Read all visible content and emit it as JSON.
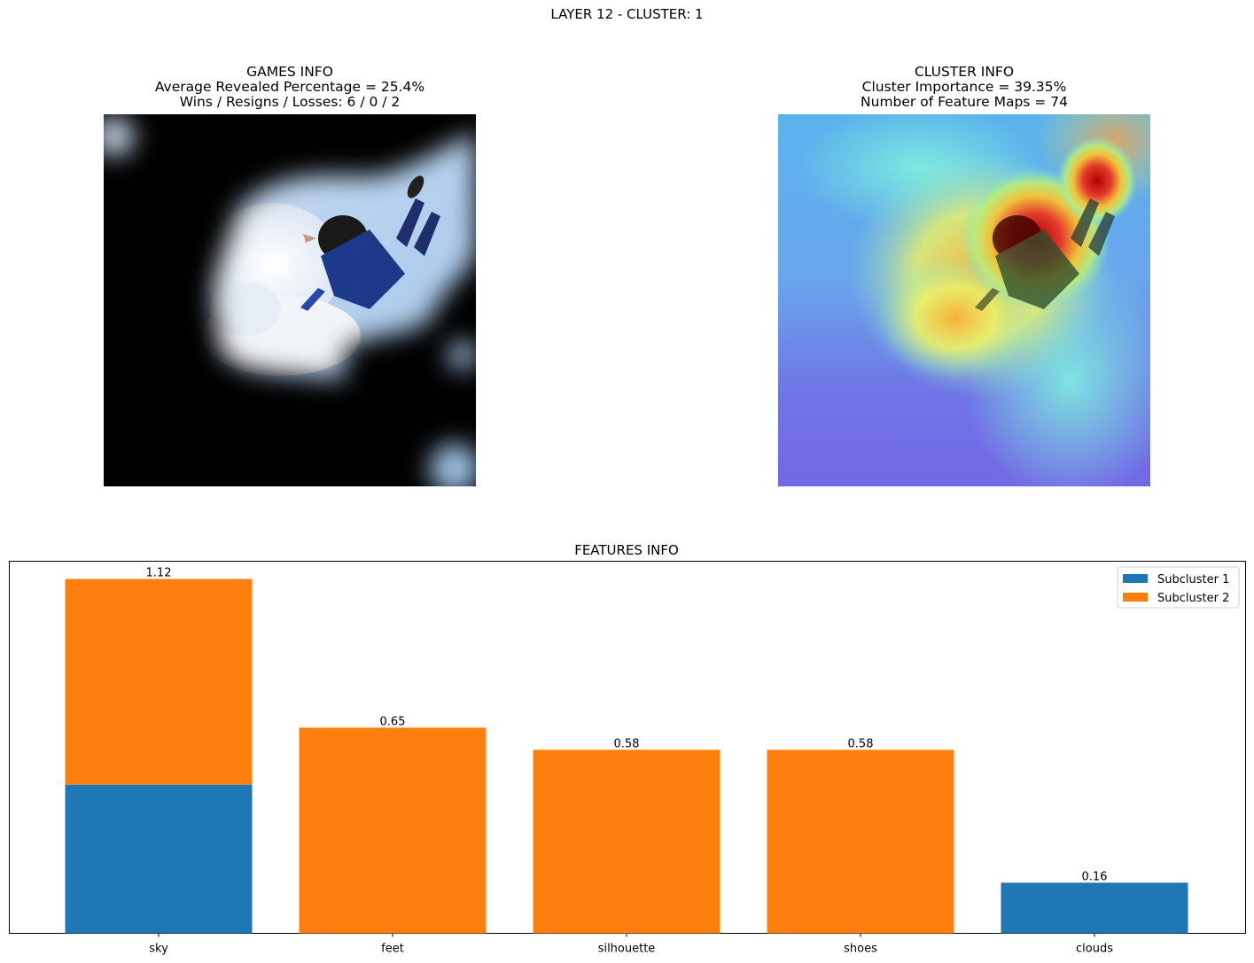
{
  "figure": {
    "suptitle": "LAYER 12 - CLUSTER: 1"
  },
  "games_info": {
    "title": "GAMES INFO",
    "line2": "Average Revealed Percentage = 25.4%",
    "line3": "Wins / Resigns / Losses: 6 / 0 / 2",
    "image": "masked skydiver photo (revealed regions only)"
  },
  "cluster_info": {
    "title": "CLUSTER INFO",
    "line2": "Cluster Importance = 39.35%",
    "line3": "Number of Feature Maps = 74",
    "image": "skydiver photo with jet-colormap heatmap overlay"
  },
  "colors": {
    "subcluster_1": "#1f77b4",
    "subcluster_2": "#ff7f0e"
  },
  "chart_data": {
    "type": "bar",
    "stacked": true,
    "title": "FEATURES INFO",
    "categories": [
      "sky",
      "feet",
      "silhouette",
      "shoes",
      "clouds"
    ],
    "series": [
      {
        "name": "Subcluster 1",
        "values": [
          0.47,
          0.0,
          0.0,
          0.0,
          0.16
        ]
      },
      {
        "name": "Subcluster 2",
        "values": [
          0.65,
          0.65,
          0.58,
          0.58,
          0.0
        ]
      }
    ],
    "totals": [
      1.12,
      0.65,
      0.58,
      0.58,
      0.16
    ],
    "total_labels": [
      "1.12",
      "0.65",
      "0.58",
      "0.58",
      "0.16"
    ],
    "ylim": [
      0,
      1.176
    ],
    "yticks": "hidden",
    "grid": false,
    "legend": "top-right",
    "xlabel": "",
    "ylabel": ""
  }
}
